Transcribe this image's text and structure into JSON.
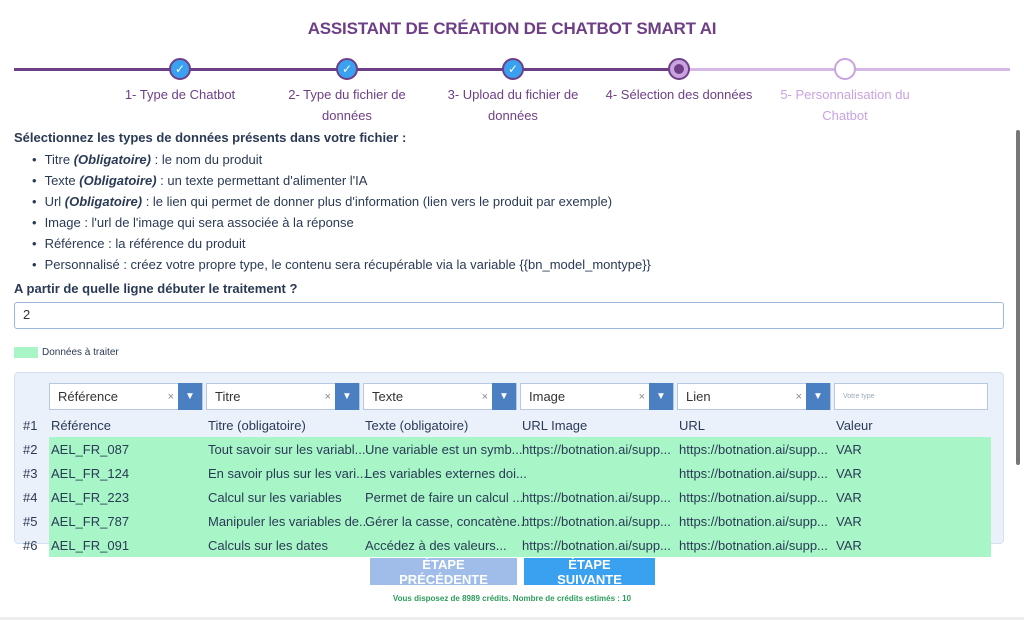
{
  "title": "ASSISTANT DE CRÉATION DE CHATBOT SMART AI",
  "steps": [
    {
      "label": "1- Type de Chatbot",
      "state": "done"
    },
    {
      "label": "2- Type du fichier de données",
      "state": "done"
    },
    {
      "label": "3- Upload du fichier de données",
      "state": "done"
    },
    {
      "label": "4- Sélection des données",
      "state": "current"
    },
    {
      "label": "5- Personnalisation du Chatbot",
      "state": "todo"
    }
  ],
  "instructions": {
    "heading": "Sélectionnez les types de données présents dans votre fichier :",
    "items": [
      {
        "name": "Titre",
        "req": "(Obligatoire)",
        "desc": " : le nom du produit"
      },
      {
        "name": "Texte",
        "req": "(Obligatoire)",
        "desc": " : un texte permettant d'alimenter l'IA"
      },
      {
        "name": "Url",
        "req": "(Obligatoire)",
        "desc": " : le lien qui permet de donner plus d'information (lien vers le produit par exemple)"
      },
      {
        "name": "Image",
        "req": "",
        "desc": " : l'url de l'image qui sera associée à la réponse"
      },
      {
        "name": "Référence",
        "req": "",
        "desc": " : la référence du produit"
      },
      {
        "name": "Personnalisé",
        "req": "",
        "desc": " : créez votre propre type, le contenu sera récupérable via la variable {{bn_model_montype}}"
      }
    ]
  },
  "start_line": {
    "question": "A partir de quelle ligne débuter le traitement ?",
    "value": "2"
  },
  "legend": {
    "label": "Données à traiter",
    "color": "#a8f5c8"
  },
  "selectors": [
    "Référence",
    "Titre",
    "Texte",
    "Image",
    "Lien"
  ],
  "custom_placeholder": "Votre type",
  "rows": [
    {
      "n": "#1",
      "cells": [
        "Référence",
        "Titre (obligatoire)",
        "Texte (obligatoire)",
        "URL Image",
        "URL",
        "Valeur"
      ],
      "hl": false
    },
    {
      "n": "#2",
      "cells": [
        "AEL_FR_087",
        "Tout savoir sur les variabl...",
        "Une variable est un symb...",
        "https://botnation.ai/supp...",
        "https://botnation.ai/supp...",
        "VAR"
      ],
      "hl": true
    },
    {
      "n": "#3",
      "cells": [
        "AEL_FR_124",
        "En savoir plus sur les vari...",
        "Les variables externes doi...",
        "",
        "https://botnation.ai/supp...",
        "VAR"
      ],
      "hl": true
    },
    {
      "n": "#4",
      "cells": [
        "AEL_FR_223",
        "Calcul sur les variables",
        "Permet de faire un calcul ...",
        "https://botnation.ai/supp...",
        "https://botnation.ai/supp...",
        "VAR"
      ],
      "hl": true
    },
    {
      "n": "#5",
      "cells": [
        "AEL_FR_787",
        "Manipuler les variables de...",
        "Gérer la casse, concatène...",
        "https://botnation.ai/supp...",
        "https://botnation.ai/supp...",
        "VAR"
      ],
      "hl": true
    },
    {
      "n": "#6",
      "cells": [
        "AEL_FR_091",
        "Calculs sur les dates",
        "Accédez à des valeurs...",
        "https://botnation.ai/supp...",
        "https://botnation.ai/supp...",
        "VAR"
      ],
      "hl": true
    }
  ],
  "buttons": {
    "prev": "ÉTAPE PRÉCÉDENTE",
    "next": "ÉTAPE SUIVANTE"
  },
  "credits": "Vous disposez de 8989 crédits. Nombre de crédits estimés : 10",
  "colors": {
    "brand": "#6e3f86",
    "accent": "#3aa0f0",
    "highlight": "#a8f5c8"
  }
}
